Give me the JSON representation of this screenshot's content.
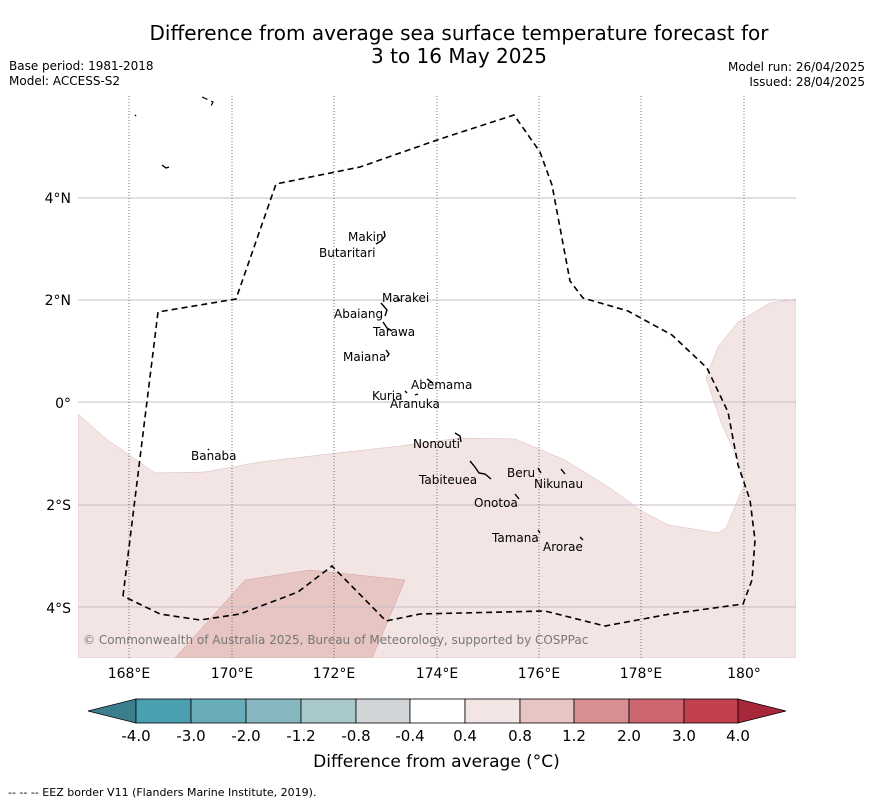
{
  "title": {
    "line1": "Difference from average sea surface temperature forecast for",
    "line2": "3 to 16 May 2025"
  },
  "meta_left": {
    "base_period": "Base period: 1981-2018",
    "model": "Model: ACCESS-S2"
  },
  "meta_right": {
    "model_run": "Model run: 26/04/2025",
    "issued": "Issued: 28/04/2025"
  },
  "map": {
    "lat_labels": [
      "4°N",
      "2°N",
      "0°",
      "2°S",
      "4°S"
    ],
    "lon_labels": [
      "168°E",
      "170°E",
      "172°E",
      "174°E",
      "176°E",
      "178°E",
      "180°"
    ],
    "islands": [
      "Makin",
      "Butaritari",
      "Marakei",
      "Abaiang",
      "Tarawa",
      "Maiana",
      "Abemama",
      "Kuria",
      "Aranuka",
      "Nonouti",
      "Banaba",
      "Tabiteuea",
      "Beru",
      "Nikunau",
      "Onotoa",
      "Tamana",
      "Arorae"
    ],
    "copyright": "© Commonwealth of Australia 2025, Bureau of Meteorology, supported by COSPPac",
    "eez_border_style": "dashed",
    "colors": {
      "anomaly_0.4_to_0.8": "#f4e5e5",
      "anomaly_0.8_to_1.2": "#e7c5c3"
    }
  },
  "colorbar": {
    "labels": [
      "-4.0",
      "-3.0",
      "-2.0",
      "-1.2",
      "-0.8",
      "-0.4",
      "0.4",
      "0.8",
      "1.2",
      "2.0",
      "3.0",
      "4.0"
    ],
    "colors": [
      "#3b7f8f",
      "#4aa0b0",
      "#68adb9",
      "#87b8c2",
      "#a8c8cc",
      "#d1d5d8",
      "#ffffff",
      "#f4e5e5",
      "#e7c5c3",
      "#d98e93",
      "#cd666f",
      "#c1414e",
      "#a8283b"
    ],
    "title": "Difference from average (°C)"
  },
  "footnote": "--  --  -- EEZ border V11 (Flanders Marine Institute, 2019)."
}
